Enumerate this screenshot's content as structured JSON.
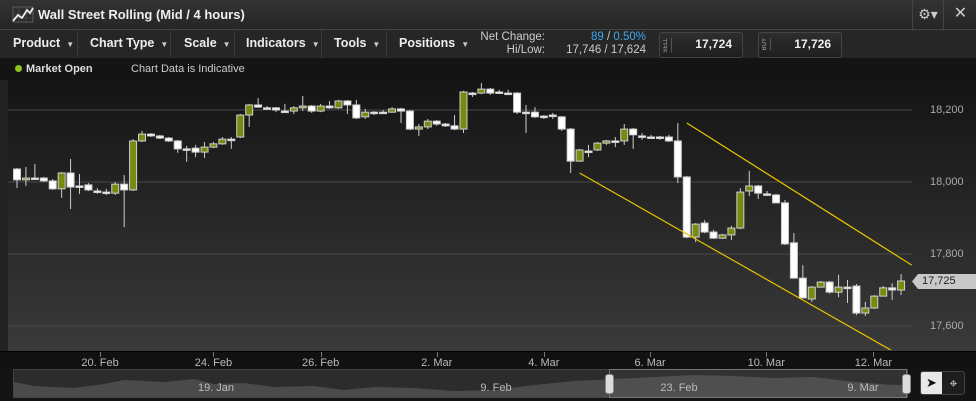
{
  "window": {
    "title": "Wall Street Rolling (Mid / 4 hours)",
    "icon": "line-chart-icon",
    "settings_icon": "gear-icon",
    "close_icon": "close-icon"
  },
  "toolbar": {
    "menus": [
      {
        "label": "Product"
      },
      {
        "label": "Chart Type"
      },
      {
        "label": "Scale"
      },
      {
        "label": "Indicators"
      },
      {
        "label": "Tools"
      },
      {
        "label": "Positions"
      }
    ],
    "net_change_label": "Net Change:",
    "net_change_value": "89",
    "net_change_sep": "/",
    "net_change_pct": "0.50%",
    "hilow_label": "Hi/Low:",
    "hilow_value": "17,746 / 17,624",
    "sell_label": "SELL",
    "sell_value": "17,724",
    "buy_label": "BUY",
    "buy_value": "17,726"
  },
  "status": {
    "market": "Market Open",
    "market_color": "#8fc31f",
    "note": "Chart Data is Indicative"
  },
  "colors": {
    "up": "#7a8a10",
    "down": "#ffffff",
    "trendline": "#e6c200",
    "accent": "#3ea6f0"
  },
  "chart_data": {
    "type": "candlestick",
    "y_ticks": [
      "18,200",
      "18,000",
      "17,800",
      "17,600"
    ],
    "y_tick_values": [
      18200,
      18000,
      17800,
      17600
    ],
    "ylim": [
      17530,
      18290
    ],
    "grid": true,
    "x_labels": [
      {
        "label": "20. Feb",
        "candle": 9.3
      },
      {
        "label": "24. Feb",
        "candle": 22
      },
      {
        "label": "26. Feb",
        "candle": 34
      },
      {
        "label": "2. Mar",
        "candle": 47
      },
      {
        "label": "4. Mar",
        "candle": 59
      },
      {
        "label": "6. Mar",
        "candle": 70.9
      },
      {
        "label": "10. Mar",
        "candle": 83.9
      },
      {
        "label": "12. Mar",
        "candle": 95.9
      }
    ],
    "last_price": "17,725",
    "last_price_value": 17725,
    "candles_ohlc": [
      [
        18036,
        18039,
        17983,
        18006
      ],
      [
        18006,
        18042,
        17989,
        18011
      ],
      [
        18011,
        18050,
        18008,
        18011
      ],
      [
        18011,
        18014,
        18000,
        18003
      ],
      [
        18003,
        18008,
        17978,
        17981
      ],
      [
        17981,
        18028,
        17956,
        18025
      ],
      [
        18025,
        18064,
        17925,
        17986
      ],
      [
        17989,
        18022,
        17967,
        17989
      ],
      [
        17992,
        17997,
        17975,
        17978
      ],
      [
        17975,
        17983,
        17967,
        17975
      ],
      [
        17972,
        17981,
        17964,
        17972
      ],
      [
        17969,
        18000,
        17964,
        17994
      ],
      [
        17994,
        18019,
        17875,
        17978
      ],
      [
        17978,
        18119,
        17975,
        18114
      ],
      [
        18114,
        18142,
        18111,
        18133
      ],
      [
        18133,
        18136,
        18125,
        18128
      ],
      [
        18128,
        18131,
        18119,
        18122
      ],
      [
        18122,
        18125,
        18111,
        18114
      ],
      [
        18114,
        18117,
        18081,
        18092
      ],
      [
        18092,
        18100,
        18056,
        18092
      ],
      [
        18094,
        18103,
        18069,
        18083
      ],
      [
        18083,
        18111,
        18067,
        18097
      ],
      [
        18097,
        18111,
        18094,
        18106
      ],
      [
        18106,
        18125,
        18103,
        18119
      ],
      [
        18119,
        18125,
        18092,
        18119
      ],
      [
        18125,
        18189,
        18122,
        18186
      ],
      [
        18186,
        18217,
        18153,
        18214
      ],
      [
        18214,
        18233,
        18206,
        18208
      ],
      [
        18206,
        18211,
        18203,
        18206
      ],
      [
        18206,
        18208,
        18194,
        18200
      ],
      [
        18197,
        18217,
        18192,
        18197
      ],
      [
        18197,
        18211,
        18189,
        18206
      ],
      [
        18206,
        18239,
        18197,
        18211
      ],
      [
        18211,
        18214,
        18192,
        18197
      ],
      [
        18197,
        18217,
        18194,
        18211
      ],
      [
        18211,
        18225,
        18203,
        18206
      ],
      [
        18206,
        18228,
        18203,
        18225
      ],
      [
        18225,
        18228,
        18189,
        18214
      ],
      [
        18214,
        18228,
        18175,
        18178
      ],
      [
        18181,
        18203,
        18175,
        18194
      ],
      [
        18194,
        18197,
        18186,
        18194
      ],
      [
        18194,
        18200,
        18189,
        18194
      ],
      [
        18194,
        18208,
        18192,
        18203
      ],
      [
        18203,
        18206,
        18164,
        18197
      ],
      [
        18197,
        18200,
        18144,
        18147
      ],
      [
        18147,
        18161,
        18128,
        18153
      ],
      [
        18153,
        18175,
        18147,
        18169
      ],
      [
        18169,
        18172,
        18156,
        18161
      ],
      [
        18161,
        18164,
        18153,
        18156
      ],
      [
        18156,
        18186,
        18144,
        18147
      ],
      [
        18147,
        18253,
        18136,
        18250
      ],
      [
        18247,
        18250,
        18236,
        18247
      ],
      [
        18247,
        18275,
        18244,
        18258
      ],
      [
        18258,
        18261,
        18242,
        18247
      ],
      [
        18250,
        18256,
        18247,
        18250
      ],
      [
        18247,
        18256,
        18242,
        18247
      ],
      [
        18247,
        18250,
        18189,
        18194
      ],
      [
        18194,
        18214,
        18136,
        18194
      ],
      [
        18194,
        18208,
        18178,
        18181
      ],
      [
        18183,
        18186,
        18175,
        18183
      ],
      [
        18186,
        18192,
        18175,
        18186
      ],
      [
        18181,
        18183,
        18142,
        18147
      ],
      [
        18147,
        18150,
        18025,
        18058
      ],
      [
        18058,
        18092,
        18056,
        18089
      ],
      [
        18086,
        18103,
        18069,
        18086
      ],
      [
        18089,
        18111,
        18086,
        18108
      ],
      [
        18108,
        18117,
        18103,
        18114
      ],
      [
        18114,
        18125,
        18097,
        18114
      ],
      [
        18114,
        18161,
        18103,
        18147
      ],
      [
        18147,
        18150,
        18092,
        18131
      ],
      [
        18128,
        18136,
        18117,
        18128
      ],
      [
        18125,
        18131,
        18122,
        18125
      ],
      [
        18125,
        18128,
        18117,
        18125
      ],
      [
        18125,
        18131,
        18111,
        18114
      ],
      [
        18114,
        18164,
        17997,
        18014
      ],
      [
        18014,
        18017,
        17844,
        17847
      ],
      [
        17847,
        17886,
        17833,
        17883
      ],
      [
        17886,
        17894,
        17858,
        17861
      ],
      [
        17861,
        17867,
        17842,
        17844
      ],
      [
        17844,
        17856,
        17842,
        17853
      ],
      [
        17853,
        17878,
        17839,
        17872
      ],
      [
        17872,
        17983,
        17869,
        17972
      ],
      [
        17975,
        18031,
        17961,
        17989
      ],
      [
        17989,
        17992,
        17953,
        17969
      ],
      [
        17967,
        17975,
        17961,
        17967
      ],
      [
        17964,
        17967,
        17942,
        17942
      ],
      [
        17942,
        17950,
        17825,
        17828
      ],
      [
        17831,
        17858,
        17733,
        17733
      ],
      [
        17733,
        17769,
        17678,
        17678
      ],
      [
        17675,
        17711,
        17667,
        17708
      ],
      [
        17708,
        17725,
        17708,
        17722
      ],
      [
        17722,
        17725,
        17690,
        17694
      ],
      [
        17694,
        17742,
        17680,
        17708
      ],
      [
        17708,
        17728,
        17664,
        17708
      ],
      [
        17711,
        17717,
        17630,
        17636
      ],
      [
        17636,
        17667,
        17628,
        17650
      ],
      [
        17650,
        17686,
        17647,
        17683
      ],
      [
        17683,
        17711,
        17683,
        17706
      ],
      [
        17706,
        17719,
        17672,
        17700
      ],
      [
        17700,
        17744,
        17686,
        17725
      ]
    ],
    "trendlines": [
      {
        "from": {
          "candle": 75,
          "price": 18164
        },
        "to": {
          "candle": 100.2,
          "price": 17769
        }
      },
      {
        "from": {
          "candle": 63,
          "price": 18025
        },
        "to": {
          "candle": 100.2,
          "price": 17500
        }
      }
    ]
  },
  "navigator": {
    "labels": [
      "19. Jan",
      "9. Feb",
      "23. Feb",
      "9. Mar"
    ],
    "selection_start_fraction": 0.666,
    "selection_end_fraction": 1.0
  },
  "chart_tools": {
    "pointer_icon": "cursor-arrow-icon",
    "crosshair_icon": "crosshair-icon"
  }
}
